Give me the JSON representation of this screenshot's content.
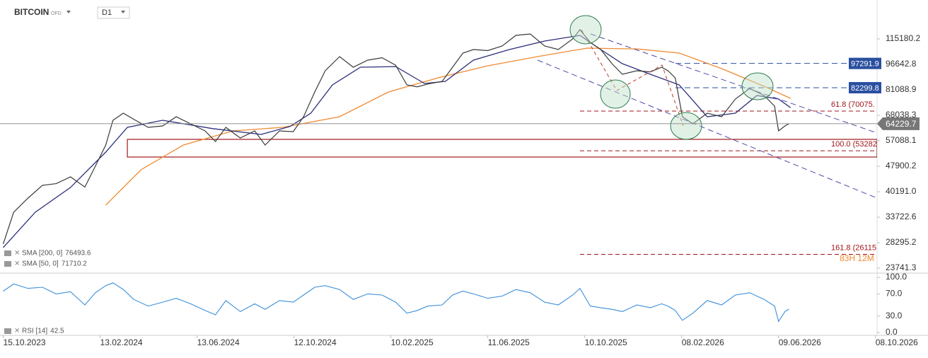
{
  "chart_data": {
    "type": "line",
    "title": "BITCOIN",
    "subtitle": "OFD",
    "timeframe": "D1",
    "log_scale": true,
    "xlim": [
      "2023-10-11",
      "2026-10-10"
    ],
    "xticks": [
      {
        "value": "2023-10-15",
        "label": "15.10.2023"
      },
      {
        "value": "2024-02-13",
        "label": "13.02.2024"
      },
      {
        "value": "2024-06-13",
        "label": "13.06.2024"
      },
      {
        "value": "2024-10-12",
        "label": "12.10.2024"
      },
      {
        "value": "2025-02-10",
        "label": "10.02.2025"
      },
      {
        "value": "2025-06-11",
        "label": "11.06.2025"
      },
      {
        "value": "2025-10-10",
        "label": "10.10.2025"
      },
      {
        "value": "2026-02-08",
        "label": "08.02.2026"
      },
      {
        "value": "2026-06-09",
        "label": "09.06.2026"
      },
      {
        "value": "2026-10-08",
        "label": "08.10.2026"
      }
    ],
    "ylim": [
      23060,
      146970
    ],
    "yticks": [
      115180.2,
      96642.8,
      81088.9,
      68038.3,
      57088.1,
      47900.2,
      {
        "value": 40191,
        "label": "40191.0"
      },
      33722.6,
      28295.2,
      23741.3
    ],
    "price": {
      "color": "#3a3a3a",
      "x": [
        "2023-10-15",
        "2023-10-28",
        "2023-11-15",
        "2023-12-03",
        "2023-12-20",
        "2024-01-07",
        "2024-01-25",
        "2024-02-07",
        "2024-02-20",
        "2024-02-29",
        "2024-03-13",
        "2024-03-26",
        "2024-04-13",
        "2024-05-01",
        "2024-05-18",
        "2024-06-05",
        "2024-06-23",
        "2024-07-06",
        "2024-07-19",
        "2024-08-06",
        "2024-08-24",
        "2024-09-06",
        "2024-09-24",
        "2024-10-11",
        "2024-10-24",
        "2024-11-07",
        "2024-11-20",
        "2024-12-08",
        "2024-12-25",
        "2025-01-12",
        "2025-01-30",
        "2025-02-16",
        "2025-03-02",
        "2025-03-15",
        "2025-03-28",
        "2025-04-15",
        "2025-04-28",
        "2025-05-11",
        "2025-05-24",
        "2025-06-11",
        "2025-06-29",
        "2025-07-16",
        "2025-08-03",
        "2025-08-21",
        "2025-09-07",
        "2025-09-25",
        "2025-10-04",
        "2025-10-17",
        "2025-10-30",
        "2025-11-13",
        "2025-11-26",
        "2025-12-14",
        "2025-12-31",
        "2026-01-14",
        "2026-01-22",
        "2026-01-31",
        "2026-02-09",
        "2026-02-22",
        "2026-03-12",
        "2026-03-30",
        "2026-04-16",
        "2026-05-04",
        "2026-05-22",
        "2026-06-04",
        "2026-06-09",
        "2026-06-17",
        "2026-06-22"
      ],
      "values": [
        28036,
        34900,
        38470,
        42010,
        42500,
        44530,
        41500,
        47920,
        55450,
        65770,
        69050,
        66200,
        62630,
        63250,
        67380,
        64180,
        61130,
        56820,
        62630,
        58220,
        61130,
        55450,
        61130,
        60800,
        67380,
        79920,
        92500,
        101970,
        94780,
        99510,
        101200,
        96100,
        83910,
        82800,
        84400,
        85980,
        94780,
        104480,
        107060,
        106300,
        109710,
        118020,
        119180,
        109710,
        107060,
        115180,
        122710,
        112400,
        107060,
        97120,
        90280,
        92500,
        91800,
        94780,
        92500,
        88100,
        67380,
        64180,
        69050,
        67380,
        76120,
        81890,
        77990,
        72490,
        61130,
        63250,
        64229.7
      ]
    },
    "series": [
      {
        "name": "SMA [200, 0]",
        "color": "#f08a30",
        "x": [
          "2024-02-20",
          "2024-04-04",
          "2024-05-27",
          "2024-07-28",
          "2024-09-28",
          "2024-12-08",
          "2025-02-07",
          "2025-04-10",
          "2025-06-11",
          "2025-08-12",
          "2025-10-13",
          "2025-12-14",
          "2026-02-05",
          "2026-03-30",
          "2026-05-22",
          "2026-06-24"
        ],
        "values": [
          36650,
          46750,
          55450,
          61130,
          62630,
          67380,
          79920,
          88100,
          95700,
          101970,
          108110,
          107500,
          104480,
          93860,
          83090,
          76493.6
        ]
      },
      {
        "name": "SMA [50, 0]",
        "color": "#2b2f7a",
        "x": [
          "2023-10-15",
          "2023-11-24",
          "2024-01-07",
          "2024-02-20",
          "2024-03-18",
          "2024-05-01",
          "2024-07-02",
          "2024-09-01",
          "2024-10-07",
          "2024-11-02",
          "2024-11-29",
          "2025-01-03",
          "2025-02-16",
          "2025-03-24",
          "2025-04-19",
          "2025-05-24",
          "2025-07-08",
          "2025-08-21",
          "2025-10-04",
          "2025-10-30",
          "2025-11-26",
          "2025-12-31",
          "2026-02-05",
          "2026-03-12",
          "2026-04-16",
          "2026-05-13",
          "2026-06-09",
          "2026-06-24"
        ],
        "values": [
          27360,
          34900,
          41400,
          52820,
          62630,
          65770,
          62100,
          59660,
          63000,
          69050,
          83910,
          94780,
          95200,
          84740,
          85980,
          99510,
          107060,
          113510,
          118020,
          107060,
          97120,
          90280,
          83910,
          67380,
          69050,
          77990,
          76120,
          71710.2
        ]
      }
    ],
    "levels": [
      {
        "value": 97291.9,
        "color": "#2a4fa0"
      },
      {
        "value": 82299.8,
        "color": "#2a4fa0"
      }
    ],
    "fib": [
      {
        "value": 70075,
        "label": "61.8 (70075."
      },
      {
        "value": 53282,
        "label": "100.0 (53282."
      },
      {
        "value": 26115,
        "label": "161.8 (26115."
      }
    ],
    "zone": {
      "from": "2024-03-18",
      "high": 57660,
      "low": 51050
    },
    "countdown": "83H 12M",
    "rsi": {
      "name": "RSI [14]",
      "color": "#3b8fd9",
      "ylim": [
        0,
        100
      ],
      "yticks": [
        {
          "value": 100,
          "label": "100.0"
        },
        {
          "value": 70,
          "label": "70.0"
        },
        {
          "value": 30,
          "label": "30.0"
        },
        {
          "value": 0,
          "label": "0.0"
        }
      ],
      "values": [
        75,
        88,
        80,
        82,
        70,
        74,
        50,
        72,
        85,
        90,
        78,
        60,
        48,
        55,
        62,
        52,
        40,
        32,
        58,
        38,
        52,
        42,
        58,
        55,
        68,
        82,
        85,
        78,
        60,
        70,
        68,
        55,
        35,
        40,
        48,
        50,
        68,
        75,
        70,
        62,
        66,
        78,
        72,
        55,
        50,
        68,
        80,
        48,
        45,
        42,
        38,
        50,
        45,
        52,
        48,
        40,
        22,
        35,
        58,
        50,
        68,
        72,
        60,
        48,
        20,
        38,
        42.5
      ]
    }
  }
}
